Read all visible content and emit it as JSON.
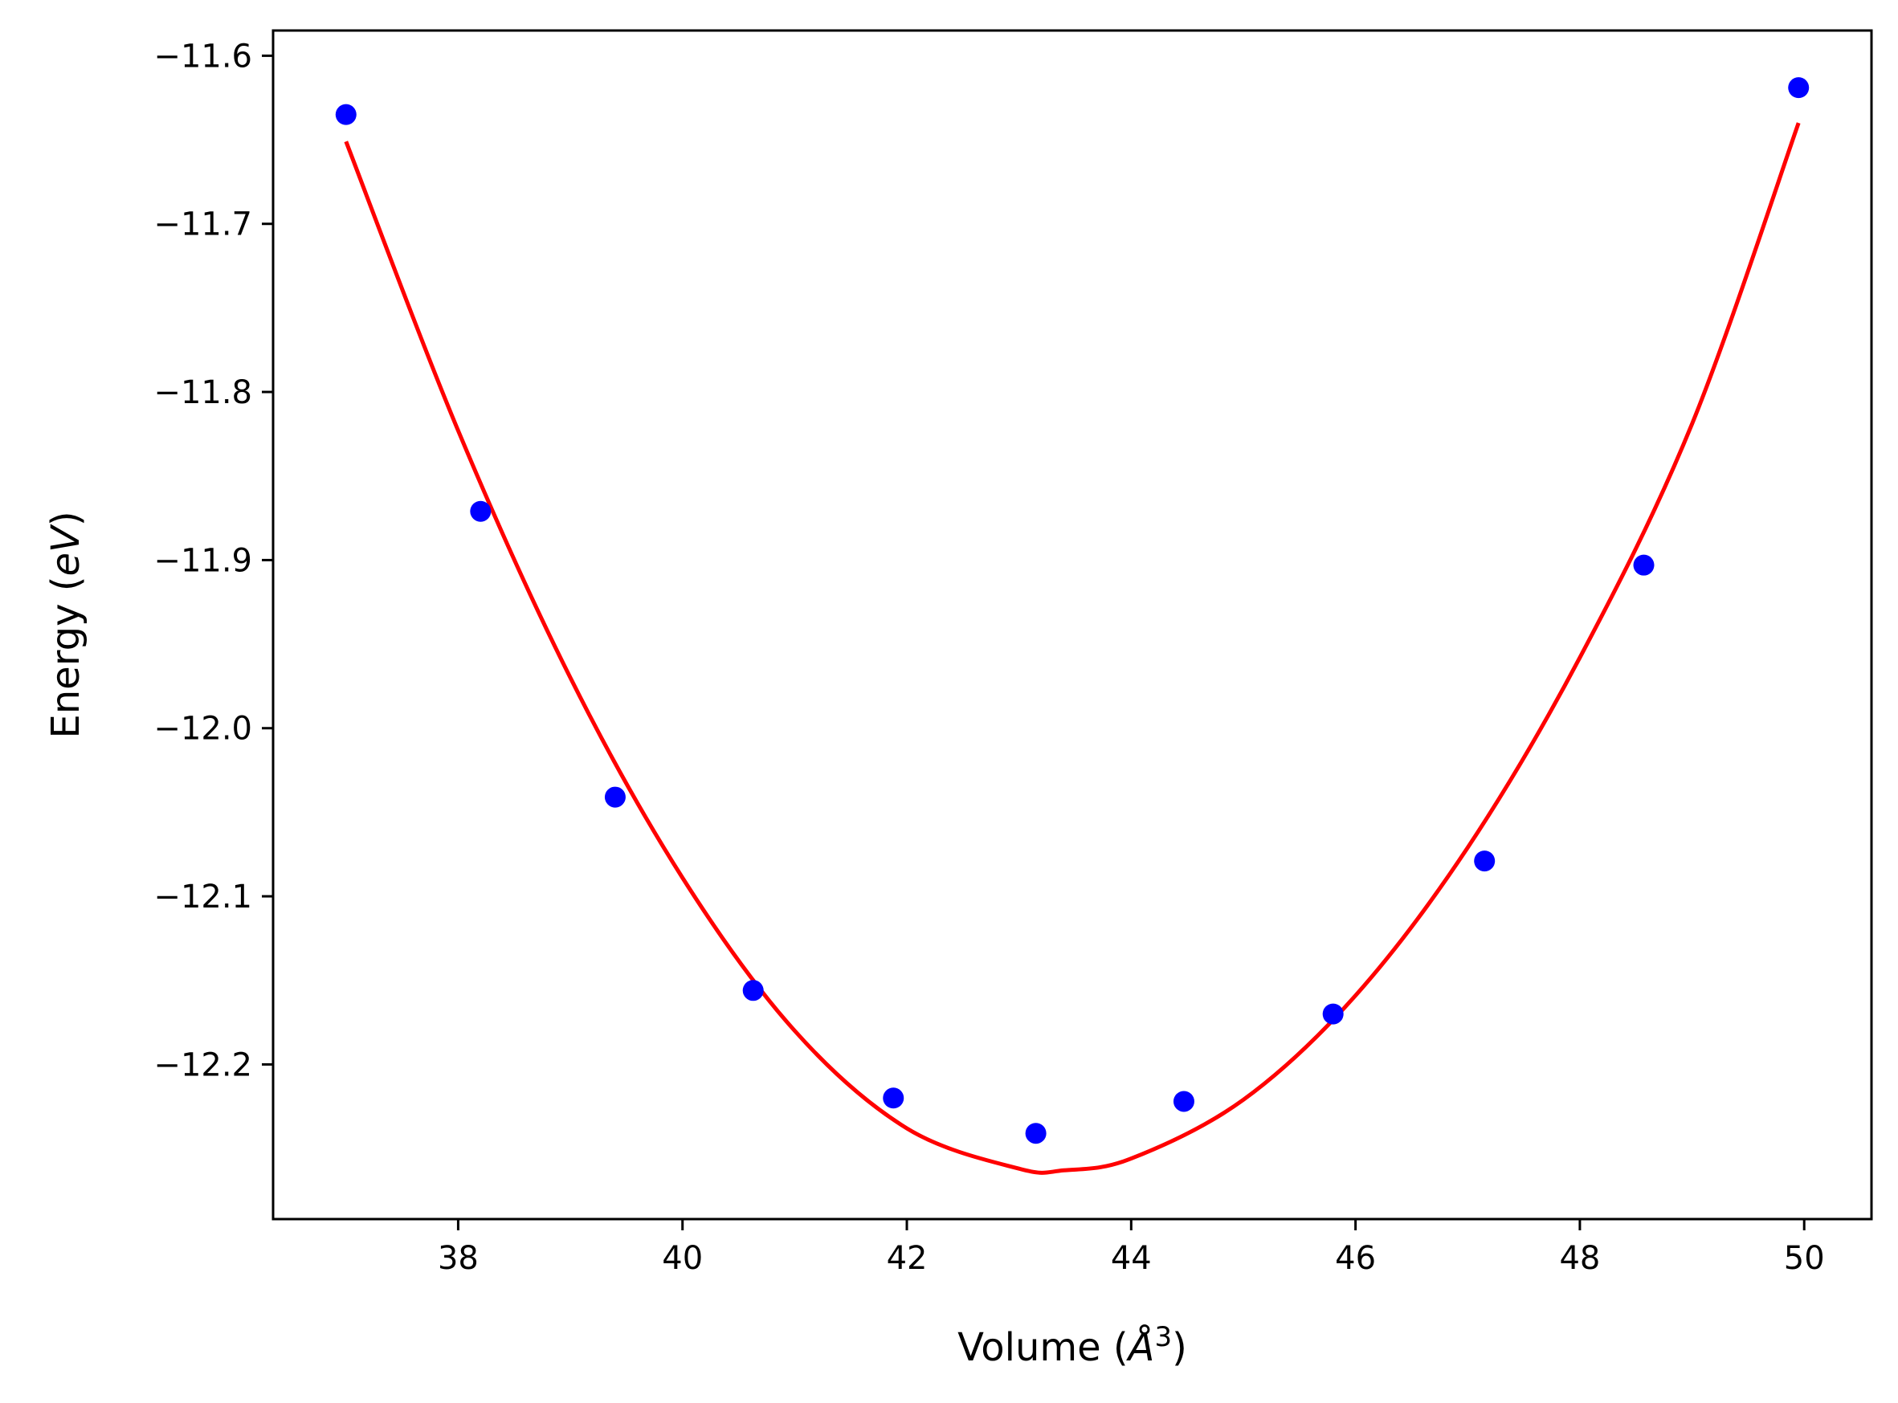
{
  "chart_data": {
    "type": "scatter",
    "title": "",
    "xlabel": "Volume",
    "xlabel_unit": "Å",
    "xlabel_unit_power": "3",
    "ylabel": "Energy",
    "ylabel_unit": "eV",
    "xlim": [
      36.35,
      50.6
    ],
    "ylim": [
      -12.292,
      -11.585
    ],
    "xticks": [
      38,
      40,
      42,
      44,
      46,
      48,
      50
    ],
    "yticks": [
      -11.6,
      -11.7,
      -11.8,
      -11.9,
      -12.0,
      -12.1,
      -12.2
    ],
    "xtick_labels": [
      "38",
      "40",
      "42",
      "44",
      "46",
      "48",
      "50"
    ],
    "ytick_labels": [
      "−11.6",
      "−11.7",
      "−11.8",
      "−11.9",
      "−12.0",
      "−12.1",
      "−12.2"
    ],
    "grid": false,
    "legend": "none",
    "series": [
      {
        "kind": "scatter",
        "color": "#0000ff",
        "x": [
          37.0,
          38.2,
          39.4,
          40.63,
          41.88,
          43.15,
          44.47,
          45.8,
          47.15,
          48.57,
          49.95
        ],
        "y": [
          -11.635,
          -11.871,
          -12.041,
          -12.156,
          -12.22,
          -12.241,
          -12.222,
          -12.17,
          -12.079,
          -11.903,
          -11.619
        ]
      },
      {
        "kind": "line",
        "color": "#ff0000",
        "x": [
          37.0,
          38.0,
          39.0,
          40.0,
          41.0,
          42.0,
          43.0,
          43.4,
          44.0,
          45.0,
          46.0,
          47.0,
          48.0,
          49.0,
          49.95
        ],
        "y": [
          -11.651,
          -11.823,
          -11.97,
          -12.089,
          -12.18,
          -12.238,
          -12.262,
          -12.263,
          -12.256,
          -12.221,
          -12.159,
          -12.071,
          -11.958,
          -11.819,
          -11.64
        ]
      }
    ]
  }
}
